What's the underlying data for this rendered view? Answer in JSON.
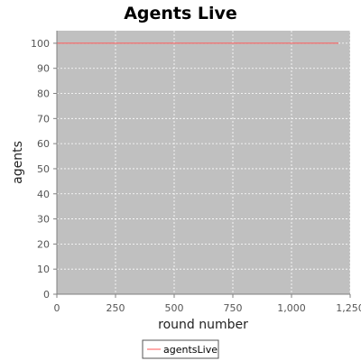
{
  "chart_data": {
    "type": "line",
    "title": "Agents Live",
    "xlabel": "round number",
    "ylabel": "agents",
    "xlim": [
      0,
      1250
    ],
    "ylim": [
      0,
      105
    ],
    "x_ticks": [
      0,
      250,
      500,
      750,
      1000,
      1250
    ],
    "x_tick_labels": [
      "0",
      "250",
      "500",
      "750",
      "1,000",
      "1,250"
    ],
    "y_ticks": [
      0,
      10,
      20,
      30,
      40,
      50,
      60,
      70,
      80,
      90,
      100
    ],
    "y_tick_labels": [
      "0",
      "10",
      "20",
      "30",
      "40",
      "50",
      "60",
      "70",
      "80",
      "90",
      "100"
    ],
    "grid": true,
    "legend_position": "bottom",
    "series": [
      {
        "name": "agentsLive",
        "color": "#ff5555",
        "x": [
          0,
          1200
        ],
        "y": [
          100,
          100
        ]
      }
    ]
  },
  "colors": {
    "plot_background": "#c0c0c0",
    "grid": "#ffffff",
    "axis": "#808080"
  }
}
